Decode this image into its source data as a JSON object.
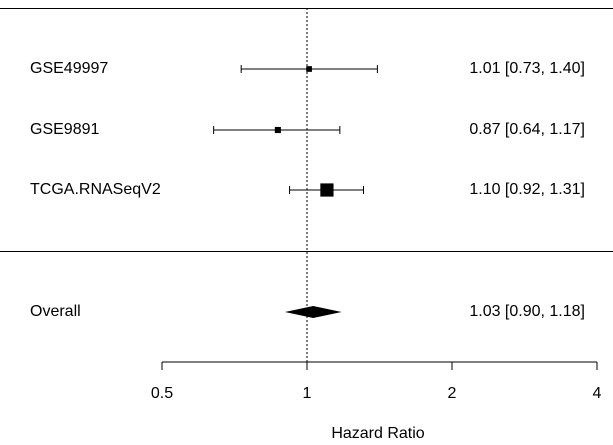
{
  "chart_data": {
    "type": "forest",
    "scale": "log",
    "xlabel": "Hazard Ratio",
    "xticks": [
      0.5,
      1,
      2,
      4
    ],
    "xtick_labels": [
      "0.5",
      "1",
      "2",
      "4"
    ],
    "xlim": [
      0.5,
      4
    ],
    "reference_line": 1,
    "studies": [
      {
        "label": "GSE49997",
        "hr": 1.01,
        "lower": 0.73,
        "upper": 1.4,
        "text": "1.01 [0.73, 1.40]",
        "weight": 0.06
      },
      {
        "label": "GSE9891",
        "hr": 0.87,
        "lower": 0.64,
        "upper": 1.17,
        "text": "0.87 [0.64, 1.17]",
        "weight": 0.08
      },
      {
        "label": "TCGA.RNASeqV2",
        "hr": 1.1,
        "lower": 0.92,
        "upper": 1.31,
        "text": "1.10 [0.92, 1.31]",
        "weight": 0.86
      }
    ],
    "overall": {
      "label": "Overall",
      "hr": 1.03,
      "lower": 0.9,
      "upper": 1.18,
      "text": "1.03 [0.90, 1.18]"
    }
  }
}
